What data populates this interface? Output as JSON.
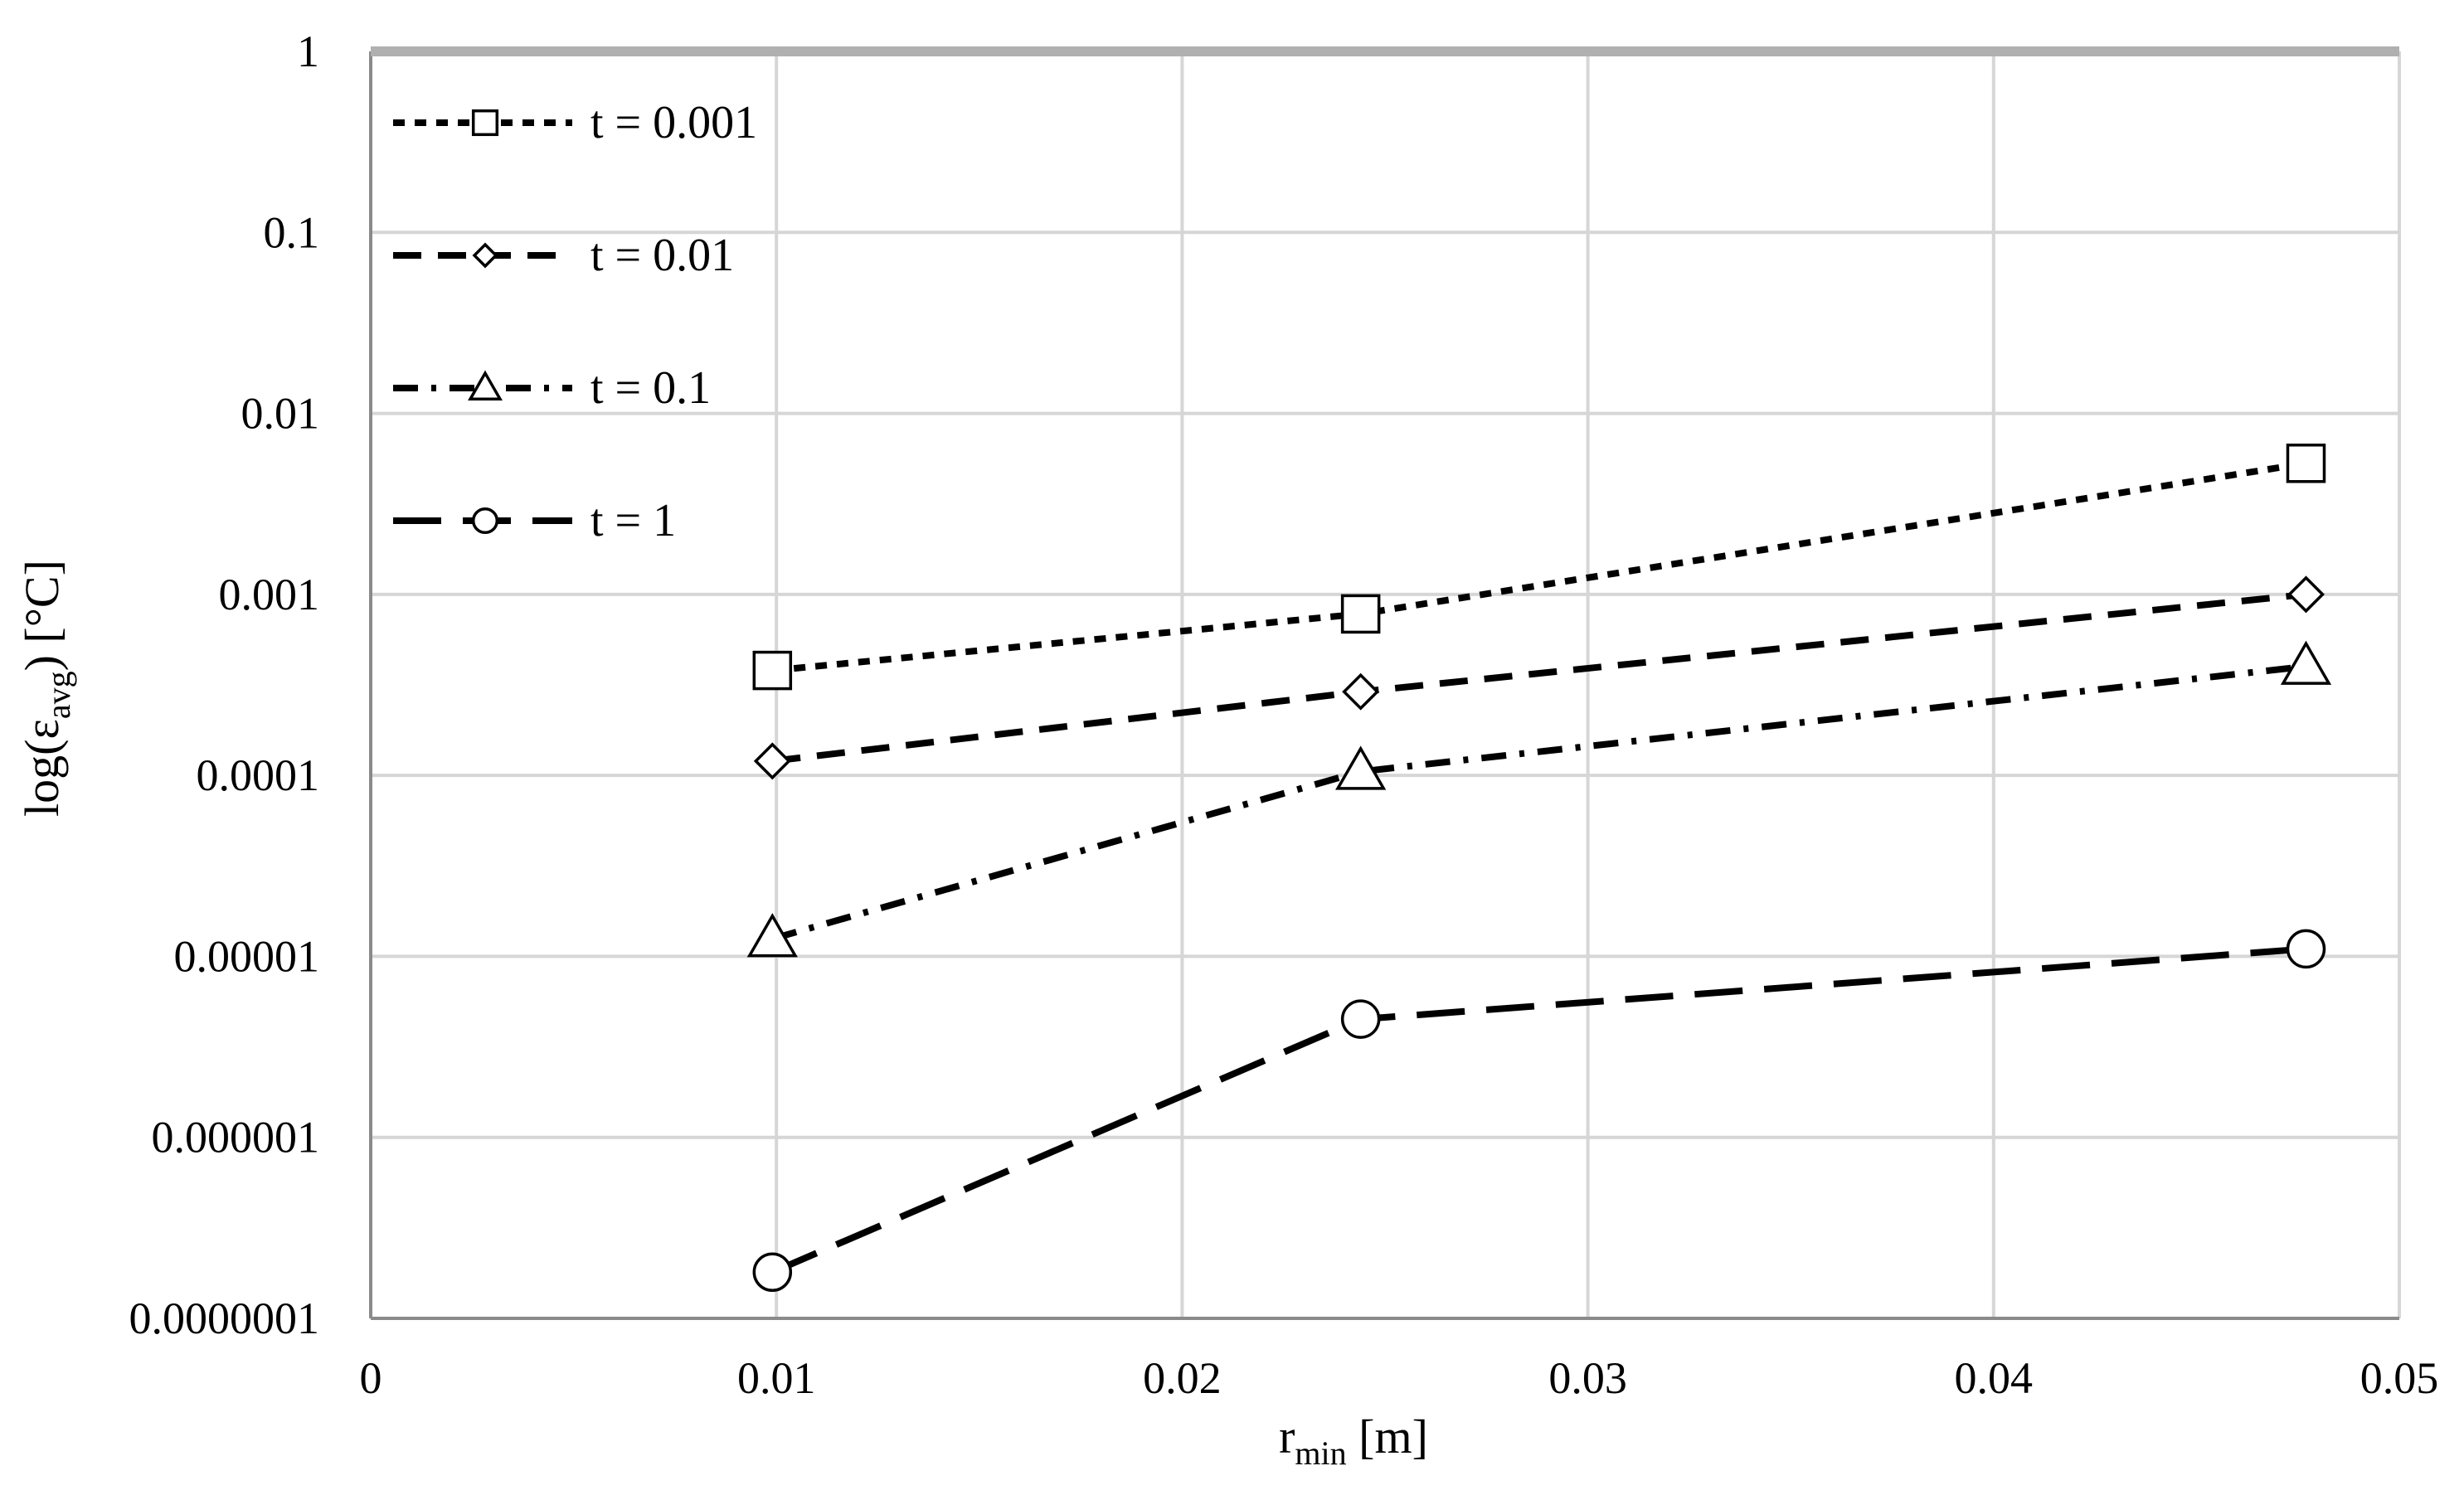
{
  "chart_data": {
    "type": "line",
    "title": "",
    "xlabel": {
      "main": "r",
      "sub": "min",
      "unit": " [m]"
    },
    "ylabel": {
      "main": "log(ε",
      "sub": "avg",
      "unit": ") [°C]"
    },
    "xlim": [
      0,
      0.05
    ],
    "ylim": [
      1e-07,
      1
    ],
    "y_scale": "log",
    "grid": true,
    "legend_position": "top-left",
    "x_ticks": [
      "0",
      "0.01",
      "0.02",
      "0.03",
      "0.04",
      "0.05"
    ],
    "x_tick_values": [
      0,
      0.01,
      0.02,
      0.03,
      0.04,
      0.05
    ],
    "y_ticks": [
      "1",
      "0.1",
      "0.01",
      "0.001",
      "0.0001",
      "0.00001",
      "0.000001",
      "0.0000001"
    ],
    "y_tick_values": [
      1,
      0.1,
      0.01,
      0.001,
      0.0001,
      1e-05,
      1e-06,
      1e-07
    ],
    "x": [
      0.0099,
      0.0244,
      0.0477
    ],
    "series": [
      {
        "name": "t = 0.001",
        "marker": "square",
        "dash": "short",
        "values": [
          0.00038,
          0.00078,
          0.0053
        ]
      },
      {
        "name": "t = 0.01",
        "marker": "diamond",
        "dash": "medium",
        "values": [
          0.00012,
          0.00029,
          0.001
        ]
      },
      {
        "name": "t = 0.1",
        "marker": "triangle",
        "dash": "dash-dot",
        "values": [
          1.25e-05,
          0.000105,
          0.0004
        ]
      },
      {
        "name": "t = 1",
        "marker": "circle",
        "dash": "long",
        "values": [
          1.8e-07,
          4.5e-06,
          1.1e-05
        ]
      }
    ]
  }
}
